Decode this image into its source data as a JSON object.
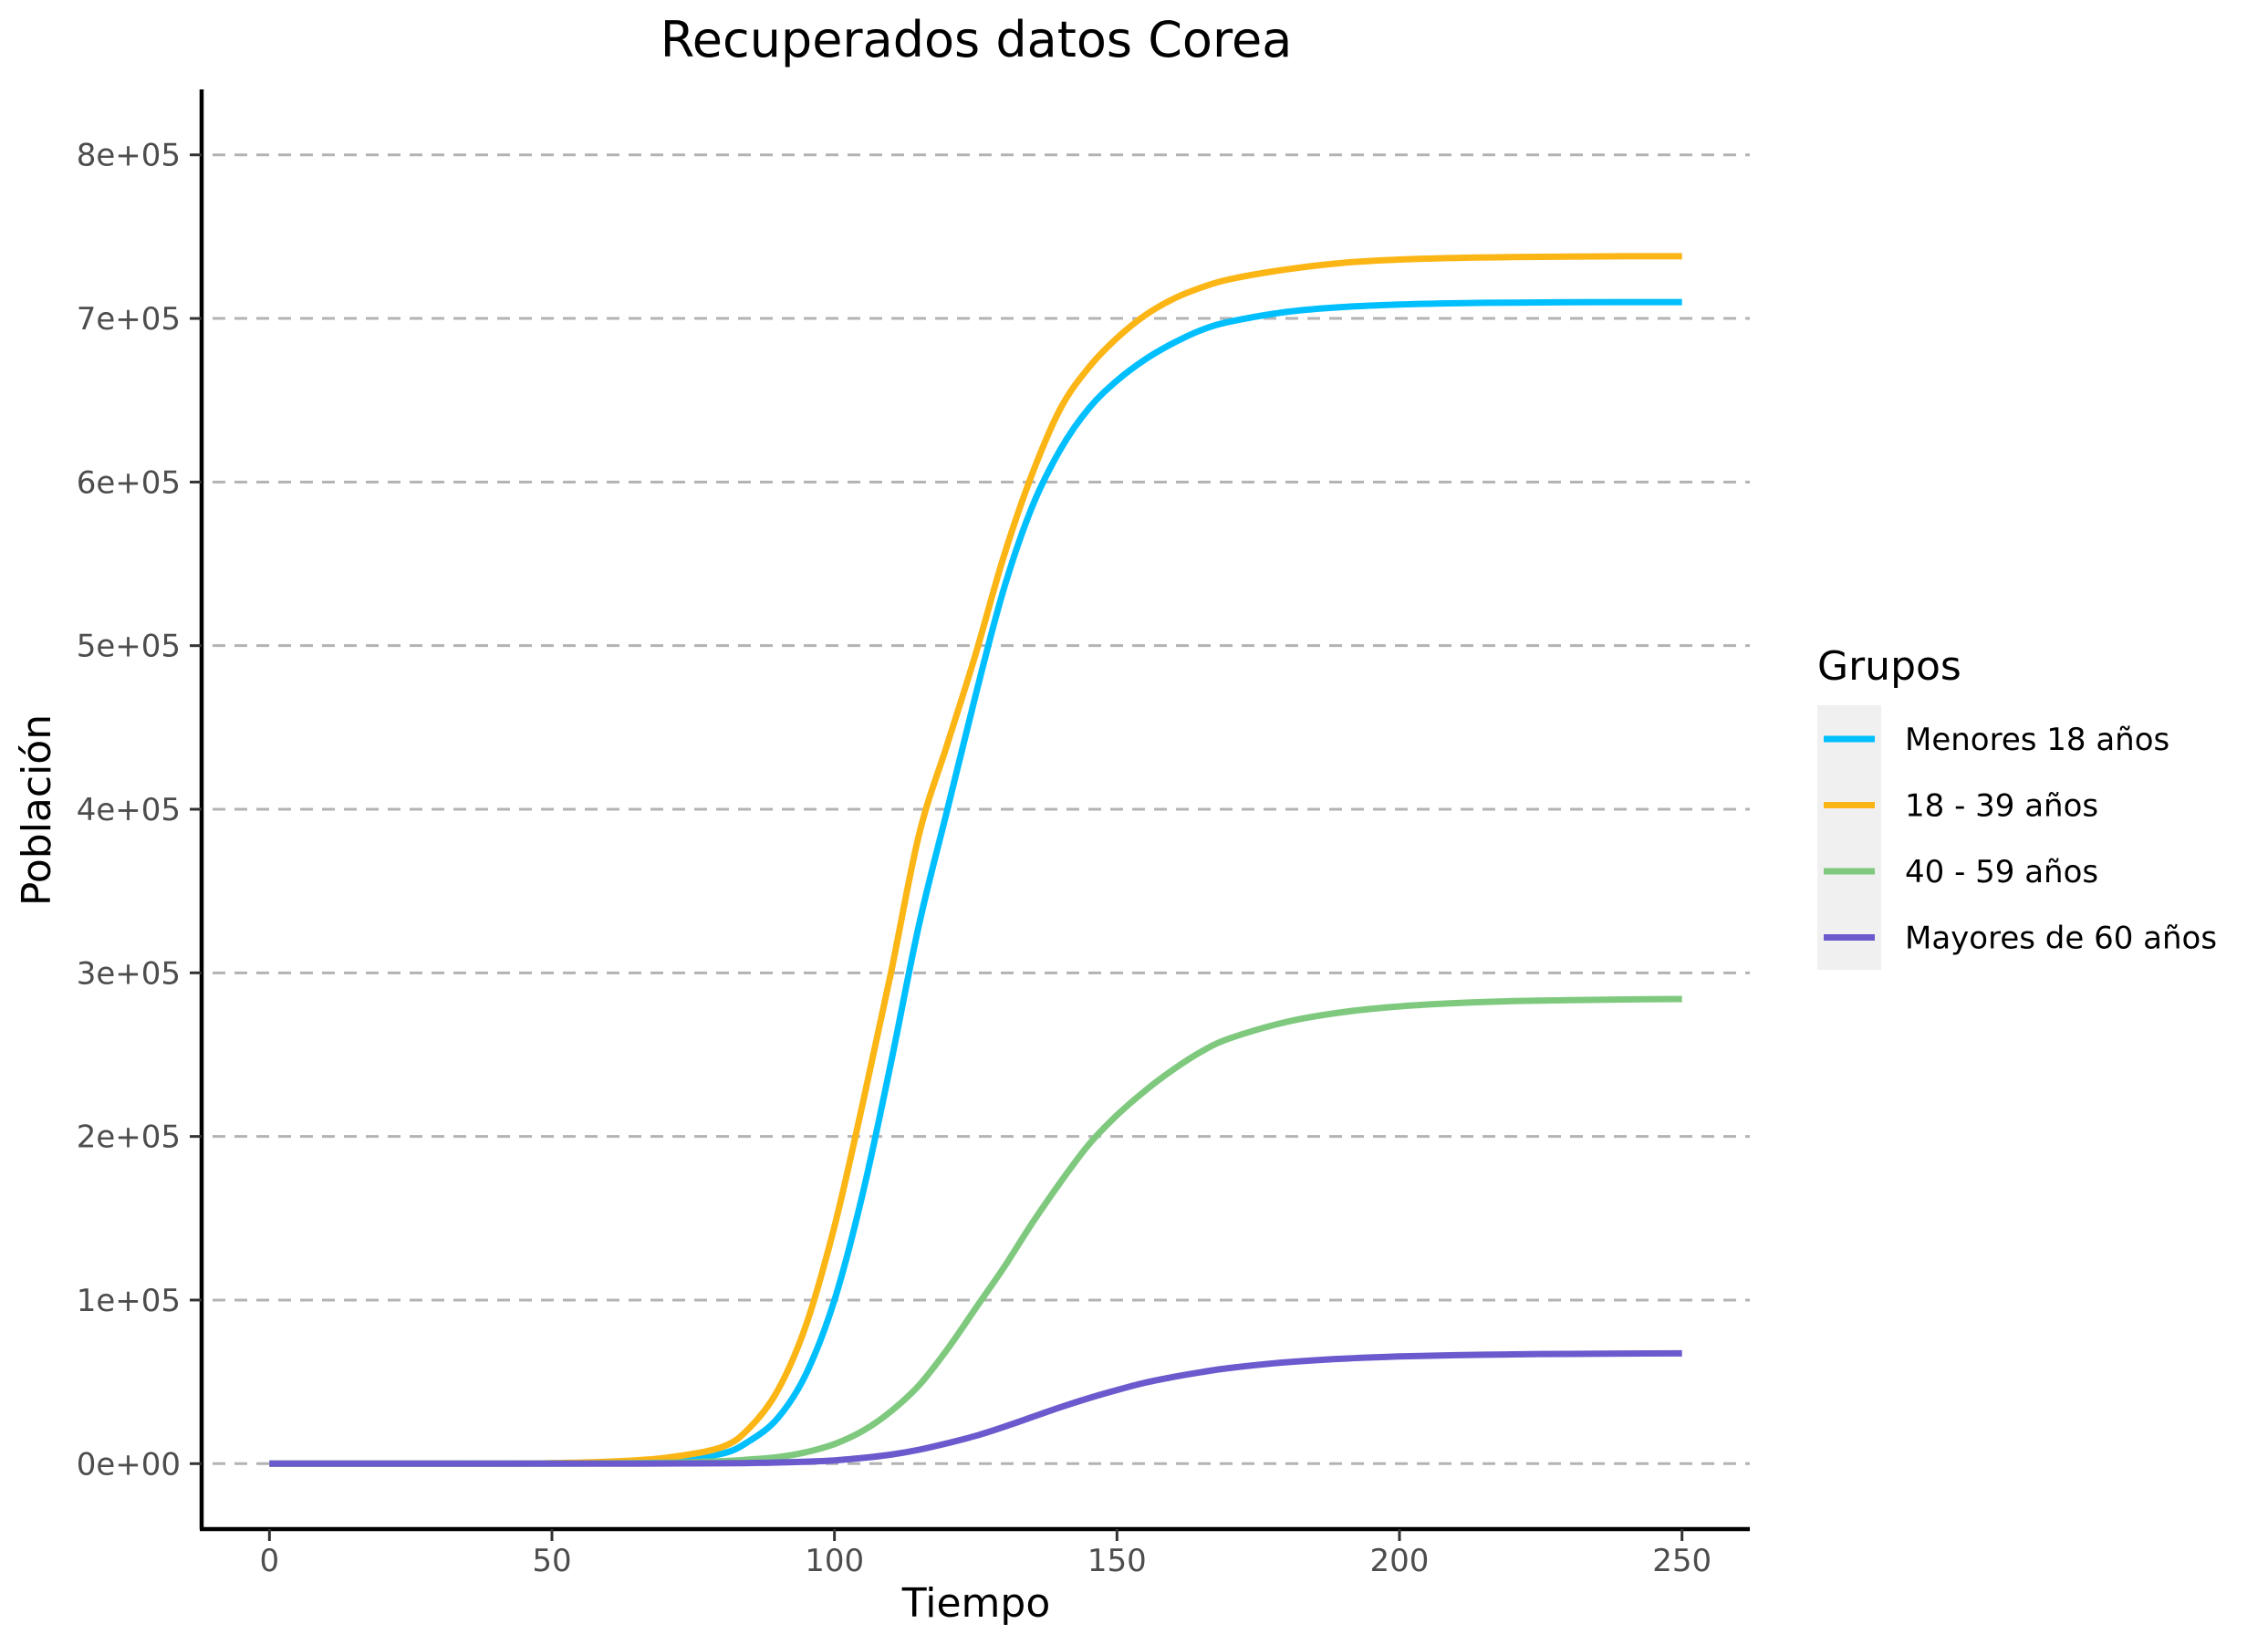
{
  "chart_data": {
    "type": "line",
    "title": "Recuperados datos Corea",
    "xlabel": "Tiempo",
    "ylabel": "Población",
    "xlim": [
      -12,
      262
    ],
    "ylim": [
      -40000,
      840000
    ],
    "x_ticks": [
      0,
      50,
      100,
      150,
      200,
      250
    ],
    "x_tick_labels": [
      "0",
      "50",
      "100",
      "150",
      "200",
      "250"
    ],
    "y_ticks": [
      0,
      100000,
      200000,
      300000,
      400000,
      500000,
      600000,
      700000,
      800000
    ],
    "y_tick_labels": [
      "0e+00",
      "1e+05",
      "2e+05",
      "3e+05",
      "4e+05",
      "5e+05",
      "6e+05",
      "7e+05",
      "8e+05"
    ],
    "grid": "horizontal dashed",
    "legend": {
      "title": "Grupos",
      "position": "right"
    },
    "x": [
      0,
      10,
      20,
      30,
      40,
      50,
      60,
      70,
      80,
      85,
      90,
      95,
      100,
      105,
      110,
      115,
      120,
      125,
      130,
      135,
      140,
      145,
      150,
      155,
      160,
      165,
      170,
      180,
      190,
      200,
      210,
      220,
      230,
      240,
      250
    ],
    "series": [
      {
        "name": "Menores 18 años",
        "color": "#00BFFF",
        "values": [
          0,
          0,
          0,
          0,
          0,
          200,
          700,
          2000,
          6000,
          14000,
          28000,
          55000,
          100000,
          165000,
          245000,
          330000,
          400000,
          470000,
          535000,
          585000,
          620000,
          645000,
          662000,
          675000,
          685000,
          693000,
          698000,
          704000,
          707000,
          708500,
          709300,
          709700,
          709900,
          710000,
          710000
        ]
      },
      {
        "name": "18 - 39 años",
        "color": "#FBB515",
        "values": [
          0,
          0,
          0,
          0,
          0,
          300,
          1200,
          3500,
          10000,
          22000,
          45000,
          85000,
          145000,
          220000,
          300000,
          385000,
          440000,
          495000,
          555000,
          605000,
          645000,
          670000,
          688000,
          702000,
          712000,
          719000,
          724000,
          730000,
          734000,
          736000,
          737000,
          737500,
          737800,
          738000,
          738000
        ]
      },
      {
        "name": "40 - 59 años",
        "color": "#7FC97F",
        "values": [
          0,
          0,
          0,
          0,
          0,
          0,
          200,
          600,
          1500,
          2500,
          4000,
          7000,
          12000,
          20000,
          32000,
          48000,
          70000,
          95000,
          120000,
          147000,
          172000,
          195000,
          213000,
          228000,
          241000,
          252000,
          260000,
          270000,
          276000,
          279500,
          281500,
          282700,
          283300,
          283700,
          284000
        ]
      },
      {
        "name": "Mayores de 60 años",
        "color": "#6A5ACD",
        "values": [
          0,
          0,
          0,
          0,
          0,
          0,
          0,
          100,
          200,
          400,
          700,
          1200,
          2000,
          3500,
          5500,
          8500,
          12500,
          17000,
          22500,
          28500,
          34500,
          40000,
          45000,
          49500,
          53000,
          56000,
          58500,
          62000,
          64200,
          65500,
          66300,
          66800,
          67100,
          67300,
          67400
        ]
      }
    ]
  }
}
